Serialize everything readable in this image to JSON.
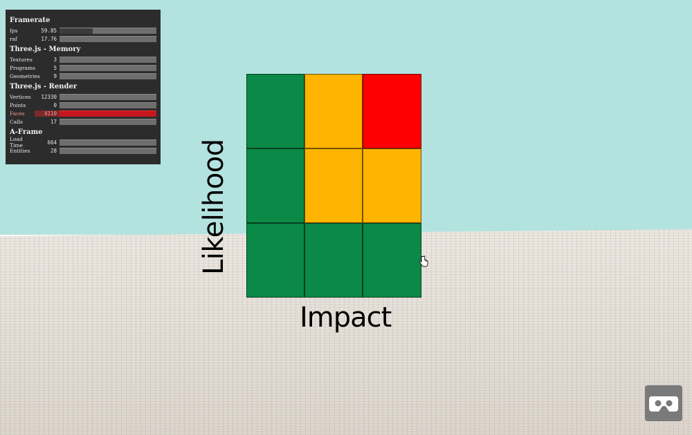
{
  "stats": {
    "sections": [
      {
        "title": "Framerate",
        "rows": [
          {
            "label": "fps",
            "value": "59.85",
            "level": 0.34
          },
          {
            "label": "raf",
            "value": "17.76",
            "level": 0.0
          }
        ]
      },
      {
        "title": "Three.js - Memory",
        "rows": [
          {
            "label": "Textures",
            "value": "3",
            "level": 0.0
          },
          {
            "label": "Programs",
            "value": "5",
            "level": 0.0
          },
          {
            "label": "Geometries",
            "value": "9",
            "level": 0.0
          }
        ]
      },
      {
        "title": "Three.js - Render",
        "rows": [
          {
            "label": "Vertices",
            "value": "12330",
            "level": 0.0
          },
          {
            "label": "Points",
            "value": "0",
            "level": 0.0
          },
          {
            "label": "Faces",
            "value": "4110",
            "level": 1.0,
            "alarm": true
          },
          {
            "label": "Calls",
            "value": "17",
            "level": 0.0
          }
        ]
      },
      {
        "title": "A-Frame",
        "rows": [
          {
            "label": "Load Time",
            "value": "664",
            "level": 0.0
          },
          {
            "label": "Entities",
            "value": "28",
            "level": 0.0
          }
        ]
      }
    ]
  },
  "matrix": {
    "x_label": "Impact",
    "y_label": "Likelihood",
    "cells": [
      [
        "#0a8a46",
        "#ffb400",
        "#ff0000"
      ],
      [
        "#0a8a46",
        "#ffb400",
        "#ffb400"
      ],
      [
        "#0a8a46",
        "#0a8a46",
        "#0a8a46"
      ]
    ]
  },
  "icons": {
    "vr_button": "vr-goggles-icon",
    "cursor": "hand-pointer-icon"
  },
  "colors": {
    "sky": "#b3e3df",
    "floor": "#e6e1da",
    "green": "#0a8a46",
    "amber": "#ffb400",
    "red": "#ff0000"
  }
}
